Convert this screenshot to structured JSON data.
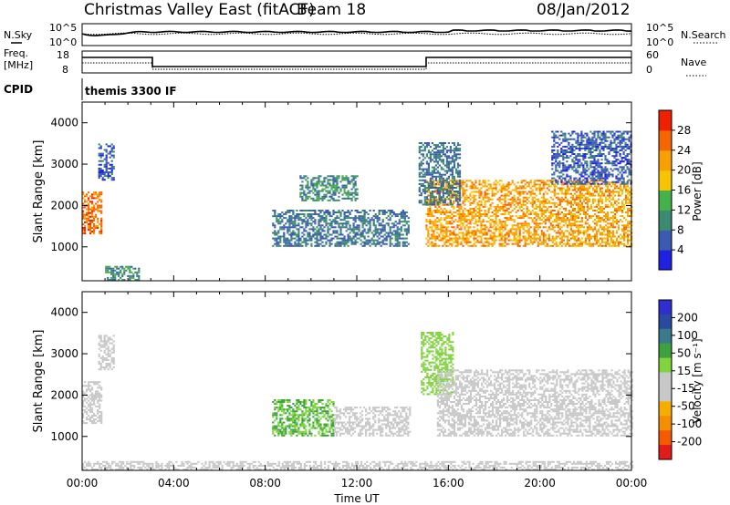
{
  "header": {
    "title": "Christmas Valley East (fitACF)",
    "beam": "Beam 18",
    "date": "08/Jan/2012"
  },
  "top_panel": {
    "left_label": "N.Sky",
    "left_ticks": [
      "10^5",
      "10^0"
    ],
    "right_label": "N.Search",
    "right_ticks": [
      "10^5",
      "10^0"
    ]
  },
  "freq_panel": {
    "left_label": [
      "Freq.",
      "[MHz]"
    ],
    "left_ticks": [
      "18",
      "8"
    ],
    "right_label": "Nave",
    "right_ticks": [
      "60",
      "0"
    ],
    "cpid_label": "CPID",
    "cpid_text": "themis 3300 IF"
  },
  "colors": {
    "power": [
      "#1f21e0",
      "#3b5bb0",
      "#3c8b71",
      "#46b14a",
      "#f7c400",
      "#f7a000",
      "#f56600",
      "#f02000"
    ],
    "velocity": [
      "#e21b1b",
      "#f55a00",
      "#f58f00",
      "#f5ae00",
      "#c8c8c8",
      "#c8c8c8",
      "#7fd43f",
      "#3fa03f",
      "#3a7a8a",
      "#2a4aa0",
      "#2f2fd0"
    ]
  },
  "chart_data": [
    {
      "type": "heatmap",
      "title": "",
      "ylabel": "Slant Range [km]",
      "ylim": [
        180,
        4500
      ],
      "xlim": [
        0,
        24
      ],
      "y_ticks": [
        "1000",
        "2000",
        "3000",
        "4000"
      ],
      "colorbar": {
        "label": "Power [dB]",
        "range": [
          0,
          32
        ],
        "ticks": [
          "4",
          "8",
          "12",
          "16",
          "20",
          "24",
          "28"
        ]
      },
      "regions": [
        {
          "t": [
            0.0,
            0.8
          ],
          "r": [
            1300,
            2300
          ],
          "value": 26
        },
        {
          "t": [
            0.7,
            1.4
          ],
          "r": [
            2600,
            3500
          ],
          "value": 6
        },
        {
          "t": [
            1.0,
            2.5
          ],
          "r": [
            180,
            500
          ],
          "value": 10
        },
        {
          "t": [
            8.3,
            14.3
          ],
          "r": [
            1000,
            1900
          ],
          "value": 8
        },
        {
          "t": [
            9.5,
            12.0
          ],
          "r": [
            2100,
            2700
          ],
          "value": 10
        },
        {
          "t": [
            15.0,
            24.0
          ],
          "r": [
            1000,
            2600
          ],
          "value": 22
        },
        {
          "t": [
            14.7,
            16.5
          ],
          "r": [
            2000,
            3500
          ],
          "value": 8
        },
        {
          "t": [
            20.5,
            24.0
          ],
          "r": [
            2500,
            3800
          ],
          "value": 6
        }
      ]
    },
    {
      "type": "heatmap",
      "title": "",
      "ylabel": "Slant Range [km]",
      "xlabel": "Time UT",
      "ylim": [
        180,
        4500
      ],
      "xlim": [
        0,
        24
      ],
      "x_ticks": [
        "00:00",
        "04:00",
        "08:00",
        "12:00",
        "16:00",
        "20:00",
        "00:00"
      ],
      "y_ticks": [
        "1000",
        "2000",
        "3000",
        "4000"
      ],
      "colorbar": {
        "label": "Velocity [m s⁻¹]",
        "ticks": [
          "200",
          "100",
          "50",
          "15",
          "-15",
          "-50",
          "-100",
          "-200"
        ]
      },
      "regions": [
        {
          "t": [
            0.0,
            0.8
          ],
          "r": [
            1300,
            2300
          ],
          "value": 0
        },
        {
          "t": [
            0.7,
            1.4
          ],
          "r": [
            2600,
            3500
          ],
          "value": 0
        },
        {
          "t": [
            8.3,
            11.0
          ],
          "r": [
            1000,
            1900
          ],
          "value": 60
        },
        {
          "t": [
            11.0,
            14.3
          ],
          "r": [
            1000,
            1700
          ],
          "value": -40
        },
        {
          "t": [
            14.8,
            16.2
          ],
          "r": [
            2000,
            3500
          ],
          "value": 30
        },
        {
          "t": [
            15.5,
            24.0
          ],
          "r": [
            1000,
            2600
          ],
          "value": 0
        },
        {
          "t": [
            0.0,
            24.0
          ],
          "r": [
            180,
            400
          ],
          "value": -30
        }
      ]
    }
  ],
  "x_axis_label": "Time UT"
}
